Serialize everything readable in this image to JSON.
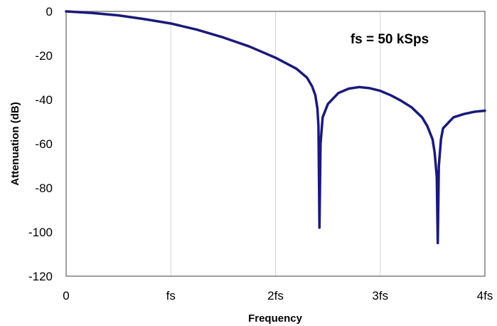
{
  "chart_data": {
    "type": "line",
    "xlabel": "Frequency",
    "ylabel": "Attenuation (dB)",
    "annotation": "fs = 50 kSps",
    "xlim": [
      0,
      4
    ],
    "ylim": [
      -120,
      0
    ],
    "x_ticks": [
      {
        "value": 0,
        "label": "0"
      },
      {
        "value": 1,
        "label": "fs"
      },
      {
        "value": 2,
        "label": "2fs"
      },
      {
        "value": 3,
        "label": "3fs"
      },
      {
        "value": 4,
        "label": "4fs"
      }
    ],
    "y_ticks": [
      {
        "value": 0,
        "label": "0"
      },
      {
        "value": -20,
        "label": "-20"
      },
      {
        "value": -40,
        "label": "-40"
      },
      {
        "value": -60,
        "label": "-60"
      },
      {
        "value": -80,
        "label": "-80"
      },
      {
        "value": -100,
        "label": "-100"
      },
      {
        "value": -120,
        "label": "-120"
      }
    ],
    "grid": "vertical",
    "series": [
      {
        "color": "#1a1a7a",
        "x": [
          0,
          0.25,
          0.5,
          0.75,
          1.0,
          1.25,
          1.5,
          1.75,
          2.0,
          2.2,
          2.3,
          2.35,
          2.38,
          2.4,
          2.41,
          2.42,
          2.43,
          2.45,
          2.5,
          2.6,
          2.7,
          2.8,
          2.9,
          3.0,
          3.1,
          3.2,
          3.3,
          3.4,
          3.45,
          3.5,
          3.52,
          3.54,
          3.55,
          3.56,
          3.58,
          3.6,
          3.7,
          3.8,
          3.9,
          4.0
        ],
        "y": [
          0,
          -0.7,
          -1.8,
          -3.5,
          -5.5,
          -8.3,
          -11.8,
          -15.9,
          -21.0,
          -26.0,
          -30.0,
          -34.0,
          -38.0,
          -44.0,
          -52.0,
          -98.0,
          -60.0,
          -48.0,
          -42.0,
          -37.0,
          -35.0,
          -34.3,
          -34.8,
          -36.0,
          -38.0,
          -40.5,
          -43.5,
          -48.0,
          -52.0,
          -58.0,
          -64.0,
          -75.0,
          -105.0,
          -70.0,
          -58.0,
          -53.0,
          -48.0,
          -46.5,
          -45.5,
          -45.0
        ]
      }
    ]
  },
  "colors": {
    "line": "#1a1a7a",
    "grid": "#d4d4d4",
    "frame": "#808080"
  }
}
